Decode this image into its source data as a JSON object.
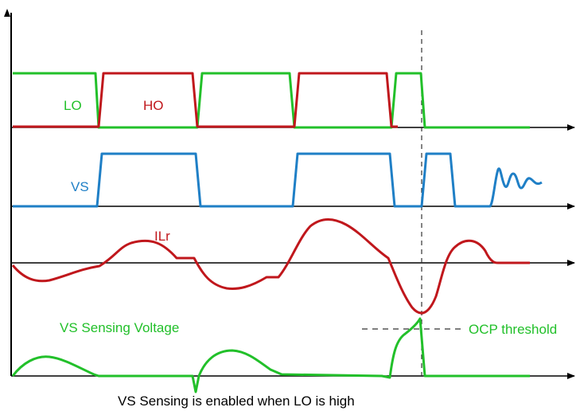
{
  "labels": {
    "lo": "LO",
    "ho": "HO",
    "vs": "VS",
    "ilr": "ILr",
    "vs_sensing_voltage": "VS Sensing Voltage",
    "ocp_threshold": "OCP threshold",
    "caption": "VS Sensing is enabled when LO is high"
  },
  "colors": {
    "axis": "#000000",
    "lo": "#22c02a",
    "ho": "#c0171c",
    "vs": "#1f7fc6",
    "ilr": "#c0171c",
    "sensing": "#22c02a",
    "guide": "#333333"
  }
}
